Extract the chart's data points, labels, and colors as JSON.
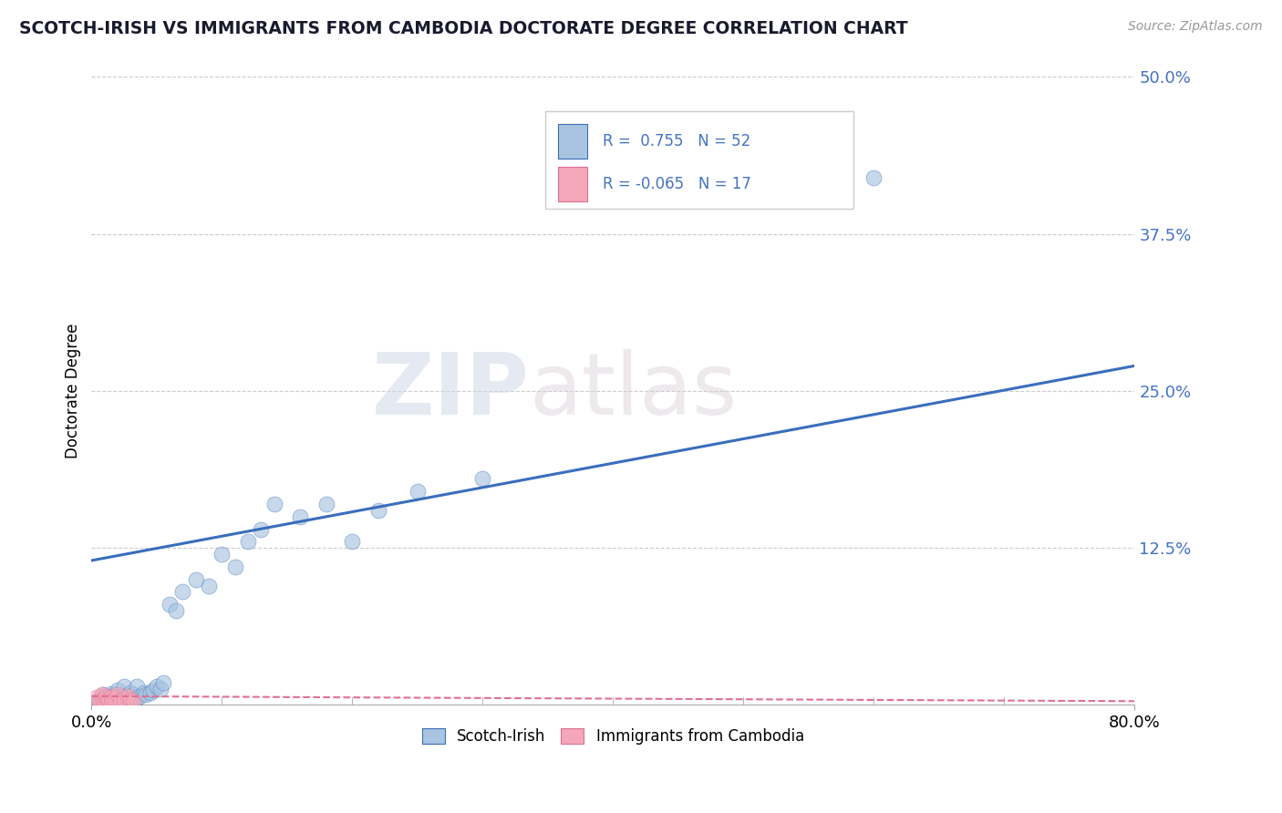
{
  "title": "SCOTCH-IRISH VS IMMIGRANTS FROM CAMBODIA DOCTORATE DEGREE CORRELATION CHART",
  "source": "Source: ZipAtlas.com",
  "ylabel": "Doctorate Degree",
  "ytick_labels": [
    "12.5%",
    "25.0%",
    "37.5%",
    "50.0%"
  ],
  "ytick_values": [
    0.125,
    0.25,
    0.375,
    0.5
  ],
  "xlim": [
    0.0,
    0.8
  ],
  "ylim": [
    0.0,
    0.5
  ],
  "blue_R": 0.755,
  "blue_N": 52,
  "pink_R": -0.065,
  "pink_N": 17,
  "blue_color": "#a8c4e0",
  "blue_line_color": "#3a6ebd",
  "pink_color": "#f4a7b9",
  "pink_line_color": "#e07090",
  "legend_label_blue": "Scotch-Irish",
  "legend_label_pink": "Immigrants from Cambodia",
  "watermark_zip": "ZIP",
  "watermark_atlas": "atlas",
  "blue_line_x0": 0.0,
  "blue_line_y0": 0.115,
  "blue_line_x1": 0.8,
  "blue_line_y1": 0.27,
  "pink_line_x0": 0.0,
  "pink_line_y0": 0.007,
  "pink_line_x1": 0.8,
  "pink_line_y1": 0.003,
  "blue_scatter_x": [
    0.005,
    0.007,
    0.008,
    0.009,
    0.01,
    0.011,
    0.012,
    0.013,
    0.015,
    0.015,
    0.016,
    0.017,
    0.018,
    0.019,
    0.02,
    0.02,
    0.022,
    0.023,
    0.025,
    0.025,
    0.027,
    0.028,
    0.03,
    0.03,
    0.032,
    0.034,
    0.035,
    0.037,
    0.04,
    0.042,
    0.045,
    0.047,
    0.05,
    0.053,
    0.055,
    0.06,
    0.065,
    0.07,
    0.08,
    0.09,
    0.1,
    0.11,
    0.12,
    0.13,
    0.14,
    0.16,
    0.18,
    0.2,
    0.22,
    0.25,
    0.3,
    0.6
  ],
  "blue_scatter_y": [
    0.003,
    0.005,
    0.002,
    0.008,
    0.004,
    0.006,
    0.003,
    0.007,
    0.004,
    0.009,
    0.005,
    0.003,
    0.008,
    0.004,
    0.006,
    0.012,
    0.005,
    0.003,
    0.007,
    0.015,
    0.004,
    0.006,
    0.005,
    0.01,
    0.008,
    0.005,
    0.015,
    0.007,
    0.01,
    0.008,
    0.01,
    0.012,
    0.015,
    0.013,
    0.018,
    0.08,
    0.075,
    0.09,
    0.1,
    0.095,
    0.12,
    0.11,
    0.13,
    0.14,
    0.16,
    0.15,
    0.16,
    0.13,
    0.155,
    0.17,
    0.18,
    0.42
  ],
  "pink_scatter_x": [
    0.004,
    0.006,
    0.008,
    0.009,
    0.01,
    0.011,
    0.012,
    0.013,
    0.015,
    0.016,
    0.018,
    0.02,
    0.022,
    0.025,
    0.028,
    0.03,
    0.032
  ],
  "pink_scatter_y": [
    0.006,
    0.003,
    0.008,
    0.004,
    0.002,
    0.007,
    0.003,
    0.005,
    0.006,
    0.003,
    0.005,
    0.008,
    0.003,
    0.005,
    0.007,
    0.004,
    0.003
  ]
}
